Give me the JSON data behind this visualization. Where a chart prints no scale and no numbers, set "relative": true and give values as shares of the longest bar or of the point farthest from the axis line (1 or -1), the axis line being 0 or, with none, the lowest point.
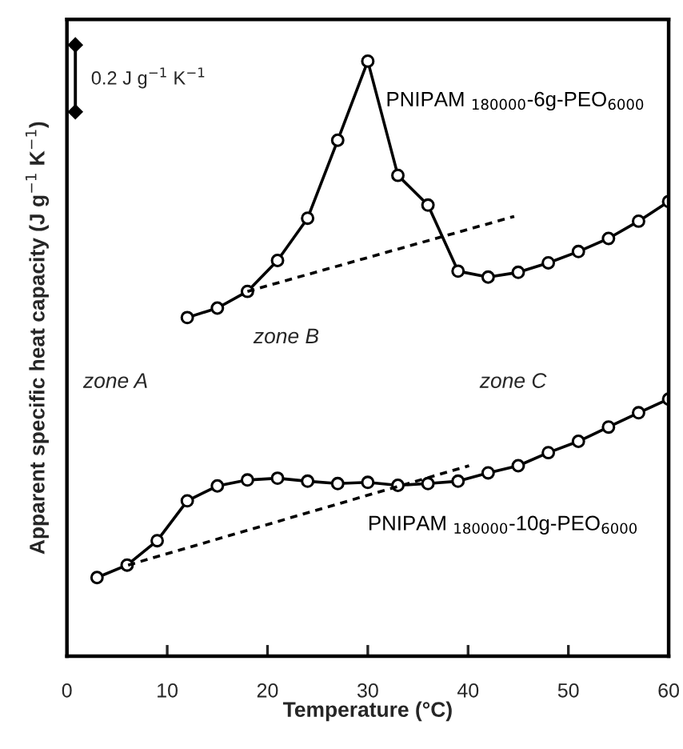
{
  "chart_data": {
    "type": "line",
    "relative": true,
    "xlabel": "Temperature (°C)",
    "ylabel": "Apparent specific heat capacity (J g$^{−1}$ K$^{−1}$)",
    "xlim": [
      0,
      60
    ],
    "xticks": [
      0,
      10,
      20,
      30,
      40,
      50,
      60
    ],
    "grid": false,
    "legend": false,
    "tick_labels": "x",
    "annotations": [
      "0.2 J g$^{−1}$ K$^{−1}$",
      "zone A",
      "zone B",
      "zone C"
    ],
    "series": [
      {
        "name": "PNIPAM $_{180000}$-6g-PEO$_{6000}$",
        "color": "#000000",
        "marker": "circle",
        "line_style": "solid",
        "x": [
          12,
          15,
          18,
          21,
          24,
          27,
          30,
          33,
          36,
          39,
          42,
          45,
          48,
          51,
          54,
          57,
          60
        ],
        "values": [
          0.569,
          0.585,
          0.613,
          0.665,
          0.736,
          0.867,
          1,
          0.808,
          0.758,
          0.647,
          0.637,
          0.645,
          0.661,
          0.68,
          0.702,
          0.731,
          0.764
        ]
      },
      {
        "name": "PNIPAM $_{180000}$-10g-PEO$_{6000}$",
        "color": "#000000",
        "marker": "circle",
        "line_style": "solid",
        "x": [
          3,
          6,
          9,
          12,
          15,
          18,
          21,
          24,
          27,
          30,
          33,
          36,
          39,
          42,
          45,
          48,
          51,
          54,
          57,
          60
        ],
        "values": [
          0.132,
          0.153,
          0.194,
          0.261,
          0.286,
          0.296,
          0.299,
          0.294,
          0.29,
          0.292,
          0.287,
          0.29,
          0.294,
          0.308,
          0.32,
          0.342,
          0.361,
          0.385,
          0.409,
          0.432
        ]
      },
      {
        "color": "#000000",
        "marker": "none",
        "line_style": "dashed",
        "x": [
          18,
          44.6
        ],
        "values": [
          0.613,
          0.739
        ]
      },
      {
        "color": "#000000",
        "marker": "none",
        "line_style": "dashed",
        "x": [
          6.1,
          40.1
        ],
        "values": [
          0.153,
          0.32
        ]
      }
    ]
  }
}
